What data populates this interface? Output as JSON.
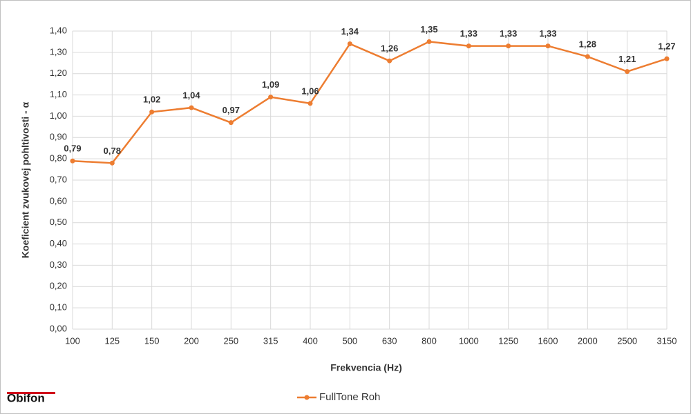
{
  "chart_data": {
    "type": "line",
    "x_label": "Frekvencia (Hz)",
    "y_label": "Koeficient zvukovej pohltivosti - α",
    "logo": "Obifon",
    "categories": [
      "100",
      "125",
      "150",
      "200",
      "250",
      "315",
      "400",
      "500",
      "630",
      "800",
      "1000",
      "1250",
      "1600",
      "2000",
      "2500",
      "3150"
    ],
    "series": [
      {
        "name": "FullTone Roh",
        "color": "#ed7d31",
        "values": [
          0.79,
          0.78,
          1.02,
          1.04,
          0.97,
          1.09,
          1.06,
          1.34,
          1.26,
          1.35,
          1.33,
          1.33,
          1.33,
          1.28,
          1.21,
          1.27
        ],
        "value_labels": [
          "0,79",
          "0,78",
          "1,02",
          "1,04",
          "0,97",
          "1,09",
          "1,06",
          "1,34",
          "1,26",
          "1,35",
          "1,33",
          "1,33",
          "1,33",
          "1,28",
          "1,21",
          "1,27"
        ]
      }
    ],
    "ylim": [
      0,
      1.4
    ],
    "yticks": [
      {
        "value": 0,
        "label": "0,00"
      },
      {
        "value": 0.1,
        "label": "0,10"
      },
      {
        "value": 0.2,
        "label": "0,20"
      },
      {
        "value": 0.3,
        "label": "0,30"
      },
      {
        "value": 0.4,
        "label": "0,40"
      },
      {
        "value": 0.5,
        "label": "0,50"
      },
      {
        "value": 0.6,
        "label": "0,60"
      },
      {
        "value": 0.7,
        "label": "0,70"
      },
      {
        "value": 0.8,
        "label": "0,80"
      },
      {
        "value": 0.9,
        "label": "0,90"
      },
      {
        "value": 1.0,
        "label": "1,00"
      },
      {
        "value": 1.1,
        "label": "1,10"
      },
      {
        "value": 1.2,
        "label": "1,20"
      },
      {
        "value": 1.3,
        "label": "1,30"
      },
      {
        "value": 1.4,
        "label": "1,40"
      }
    ],
    "grid": true,
    "legend": "bottom"
  }
}
